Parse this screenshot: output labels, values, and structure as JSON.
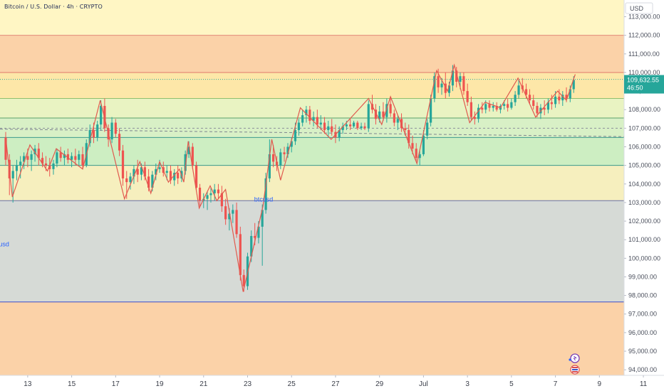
{
  "header": {
    "title": "Bitcoin / U.S. Dollar · 4h · CRYPTO"
  },
  "price_axis": {
    "currency_label": "USD",
    "current_price": "109,632.55",
    "countdown": "46:50"
  },
  "colors": {
    "bull": "#26a69a",
    "bear": "#ef5350",
    "zigzag": "#e05a4f",
    "zone_orange": "#fbd2a8",
    "zone_yellow": "#fff6c4",
    "zone_green": "#cdeec2",
    "zone_gray": "#d6dad6",
    "level_line": "#2962ff",
    "current_label_bg": "#26a69a"
  },
  "chart_data": {
    "type": "candlestick",
    "title": "Bitcoin / U.S. Dollar · 4h · CRYPTO",
    "ylim": [
      93700,
      113900
    ],
    "x_ticks": [
      "13",
      "15",
      "17",
      "19",
      "21",
      "23",
      "25",
      "27",
      "29",
      "Jul",
      "3",
      "5",
      "7",
      "9",
      "11"
    ],
    "y_ticks": [
      94000,
      95000,
      96000,
      97000,
      98000,
      99000,
      100000,
      101000,
      102000,
      103000,
      104000,
      105000,
      106000,
      107000,
      108000,
      109000,
      110000,
      111000,
      112000,
      113000
    ],
    "y_tick_labels": [
      "94,000.00",
      "95,000.00",
      "96,000.00",
      "97,000.00",
      "98,000.00",
      "99,000.00",
      "100,000.00",
      "101,000.00",
      "102,000.00",
      "103,000.00",
      "104,000.00",
      "105,000.00",
      "106,000.00",
      "107,000.00",
      "108,000.00",
      "109,000.00",
      "110,000.00",
      "111,000.00",
      "112,000.00",
      "113,000.00"
    ],
    "zones": [
      {
        "from": 112000,
        "to": 113900,
        "color": "#fff6c4"
      },
      {
        "from": 110000,
        "to": 112000,
        "color": "#fbd2a8"
      },
      {
        "from": 108600,
        "to": 110000,
        "color": "#fde7a8"
      },
      {
        "from": 107550,
        "to": 108600,
        "color": "#e9f3c2"
      },
      {
        "from": 106500,
        "to": 107550,
        "color": "#d8f0c6"
      },
      {
        "from": 105000,
        "to": 106500,
        "color": "#cdeec2"
      },
      {
        "from": 103100,
        "to": 105000,
        "color": "#f6efbe"
      },
      {
        "from": 97650,
        "to": 103100,
        "color": "#d6dad6"
      },
      {
        "from": 93700,
        "to": 97650,
        "color": "#fbd2a8"
      }
    ],
    "levels": [
      {
        "price": 112000,
        "color": "#e28a7a"
      },
      {
        "price": 110000,
        "color": "#e07a6a"
      },
      {
        "price": 108600,
        "color": "#8fbf6e"
      },
      {
        "price": 107550,
        "color": "#5aa06a"
      },
      {
        "price": 106500,
        "color": "#3c9a8c"
      },
      {
        "price": 105000,
        "color": "#3c9a8c"
      },
      {
        "price": 103100,
        "color": "#6a6fa8"
      },
      {
        "price": 97650,
        "color": "#3a4bc8"
      }
    ],
    "dashed_levels": [
      109630,
      107000
    ],
    "trend_line": {
      "x1": 0,
      "y1": 106950,
      "x2": 876,
      "y2": 106550
    },
    "annotations": [
      {
        "text": "btcusd",
        "time": 11.3,
        "price": 100650
      },
      {
        "text": "btcusd",
        "time": 23.3,
        "price": 103050
      }
    ],
    "candles": [
      [
        12.0,
        106500,
        106800,
        105000,
        105300
      ],
      [
        12.17,
        105300,
        105600,
        103400,
        104300
      ],
      [
        12.33,
        104300,
        105000,
        103000,
        104700
      ],
      [
        12.5,
        104700,
        105300,
        104200,
        105000
      ],
      [
        12.67,
        105000,
        105500,
        104300,
        105200
      ],
      [
        12.83,
        105200,
        105700,
        104800,
        105500
      ],
      [
        13.0,
        105500,
        105900,
        104900,
        105300
      ],
      [
        13.17,
        105300,
        105800,
        104700,
        105600
      ],
      [
        13.33,
        105600,
        106100,
        105200,
        105900
      ],
      [
        13.5,
        105900,
        106200,
        105000,
        105400
      ],
      [
        13.67,
        105400,
        105700,
        104900,
        105100
      ],
      [
        13.83,
        105100,
        105500,
        104700,
        105000
      ],
      [
        14.0,
        105000,
        105400,
        104400,
        104800
      ],
      [
        14.17,
        104800,
        105300,
        104500,
        105100
      ],
      [
        14.33,
        105100,
        105900,
        104900,
        105700
      ],
      [
        14.5,
        105700,
        106000,
        105200,
        105400
      ],
      [
        14.67,
        105400,
        105800,
        105000,
        105600
      ],
      [
        14.83,
        105600,
        105900,
        105100,
        105300
      ],
      [
        15.0,
        105300,
        105700,
        104900,
        105500
      ],
      [
        15.17,
        105500,
        105900,
        105000,
        105300
      ],
      [
        15.33,
        105300,
        105800,
        105000,
        105600
      ],
      [
        15.5,
        105600,
        106000,
        104800,
        105000
      ],
      [
        15.67,
        105000,
        106400,
        104900,
        106200
      ],
      [
        15.83,
        106200,
        107200,
        106000,
        106900
      ],
      [
        16.0,
        106900,
        107300,
        106200,
        106500
      ],
      [
        16.17,
        106500,
        107400,
        106300,
        107200
      ],
      [
        16.33,
        107200,
        108500,
        106900,
        108200
      ],
      [
        16.5,
        108200,
        108600,
        106800,
        107000
      ],
      [
        16.67,
        107000,
        107200,
        106000,
        106400
      ],
      [
        16.83,
        106400,
        107600,
        106200,
        107300
      ],
      [
        17.0,
        107300,
        107500,
        106500,
        106700
      ],
      [
        17.17,
        106700,
        107000,
        105500,
        105800
      ],
      [
        17.33,
        105800,
        106100,
        103900,
        104300
      ],
      [
        17.5,
        104300,
        104700,
        103200,
        104100
      ],
      [
        17.67,
        104100,
        104600,
        103700,
        104400
      ],
      [
        17.83,
        104400,
        105000,
        104000,
        104800
      ],
      [
        18.0,
        104800,
        105300,
        104100,
        104500
      ],
      [
        18.17,
        104500,
        105100,
        104200,
        104900
      ],
      [
        18.33,
        104900,
        105200,
        104200,
        104400
      ],
      [
        18.5,
        104400,
        104800,
        103600,
        103800
      ],
      [
        18.67,
        103800,
        104700,
        103600,
        104500
      ],
      [
        18.83,
        104500,
        105100,
        104200,
        104800
      ],
      [
        19.0,
        104800,
        105300,
        104600,
        104900
      ],
      [
        19.17,
        104900,
        105200,
        104400,
        104600
      ],
      [
        19.33,
        104600,
        105000,
        104200,
        104700
      ],
      [
        19.5,
        104700,
        105000,
        104000,
        104200
      ],
      [
        19.67,
        104200,
        104800,
        103900,
        104600
      ],
      [
        19.83,
        104600,
        105000,
        104000,
        104300
      ],
      [
        20.0,
        104300,
        104900,
        104100,
        104700
      ],
      [
        20.17,
        104700,
        105800,
        104500,
        105600
      ],
      [
        20.33,
        105600,
        106300,
        105400,
        106000
      ],
      [
        20.5,
        106000,
        106200,
        104800,
        105000
      ],
      [
        20.67,
        105000,
        105200,
        103600,
        103800
      ],
      [
        20.83,
        103800,
        104000,
        102800,
        103100
      ],
      [
        21.0,
        103100,
        103500,
        102700,
        103200
      ],
      [
        21.17,
        103200,
        103600,
        102600,
        103400
      ],
      [
        21.33,
        103400,
        103800,
        103000,
        103500
      ],
      [
        21.5,
        103500,
        104000,
        103100,
        103700
      ],
      [
        21.67,
        103700,
        104000,
        103200,
        103500
      ],
      [
        21.83,
        103500,
        103900,
        102500,
        102800
      ],
      [
        22.0,
        102800,
        103200,
        101800,
        102100
      ],
      [
        22.17,
        102100,
        102700,
        101500,
        102400
      ],
      [
        22.33,
        102400,
        102900,
        101900,
        102600
      ],
      [
        22.5,
        102600,
        103000,
        101100,
        101300
      ],
      [
        22.67,
        101300,
        101700,
        98800,
        99100
      ],
      [
        22.83,
        99100,
        99400,
        98200,
        98500
      ],
      [
        23.0,
        98500,
        100300,
        98300,
        100100
      ],
      [
        23.17,
        100100,
        101500,
        99800,
        101200
      ],
      [
        23.33,
        101200,
        101900,
        100700,
        101100
      ],
      [
        23.5,
        101100,
        102000,
        100800,
        101700
      ],
      [
        23.67,
        101700,
        102900,
        99600,
        102600
      ],
      [
        23.83,
        102600,
        104600,
        102400,
        104300
      ],
      [
        24.0,
        104300,
        106400,
        104100,
        105600
      ],
      [
        24.17,
        105600,
        106100,
        104900,
        105200
      ],
      [
        24.33,
        105200,
        105500,
        104700,
        105000
      ],
      [
        24.5,
        105000,
        105900,
        104800,
        105700
      ],
      [
        24.67,
        105700,
        106000,
        105200,
        105600
      ],
      [
        24.83,
        105600,
        106200,
        105400,
        106000
      ],
      [
        25.0,
        106000,
        106500,
        105700,
        106300
      ],
      [
        25.17,
        106300,
        107300,
        106100,
        106900
      ],
      [
        25.33,
        106900,
        107500,
        106600,
        107300
      ],
      [
        25.5,
        107300,
        108000,
        107100,
        107700
      ],
      [
        25.67,
        107700,
        108200,
        107300,
        108000
      ],
      [
        25.83,
        108000,
        108200,
        107200,
        107400
      ],
      [
        26.0,
        107400,
        107900,
        107100,
        107600
      ],
      [
        26.17,
        107600,
        108000,
        107000,
        107200
      ],
      [
        26.33,
        107200,
        107700,
        106900,
        107300
      ],
      [
        26.5,
        107300,
        107600,
        106700,
        106900
      ],
      [
        26.67,
        106900,
        107400,
        106500,
        107100
      ],
      [
        26.83,
        107100,
        107500,
        106600,
        106800
      ],
      [
        27.0,
        106800,
        107200,
        106200,
        106500
      ],
      [
        27.17,
        106500,
        107100,
        106300,
        106900
      ],
      [
        27.33,
        106900,
        107300,
        106700,
        107100
      ],
      [
        27.5,
        107100,
        107400,
        106900,
        107200
      ],
      [
        27.67,
        107200,
        107500,
        106900,
        107100
      ],
      [
        27.83,
        107100,
        107400,
        107000,
        107300
      ],
      [
        28.0,
        107300,
        107400,
        106900,
        107000
      ],
      [
        28.17,
        107000,
        107300,
        106900,
        107100
      ],
      [
        28.33,
        107100,
        107300,
        106900,
        107000
      ],
      [
        28.5,
        107000,
        108500,
        106800,
        108300
      ],
      [
        28.67,
        108300,
        108800,
        107800,
        108000
      ],
      [
        28.83,
        108000,
        108300,
        107200,
        107500
      ],
      [
        29.0,
        107500,
        108200,
        107300,
        107900
      ],
      [
        29.17,
        107900,
        108400,
        107400,
        107600
      ],
      [
        29.33,
        107600,
        108600,
        107300,
        108300
      ],
      [
        29.5,
        108300,
        108700,
        107600,
        107800
      ],
      [
        29.67,
        107800,
        108000,
        107100,
        107300
      ],
      [
        29.83,
        107300,
        107700,
        106900,
        107500
      ],
      [
        30.0,
        107500,
        107800,
        106800,
        107000
      ],
      [
        30.17,
        107000,
        107300,
        106600,
        106900
      ],
      [
        30.33,
        106900,
        107200,
        105900,
        106200
      ],
      [
        30.5,
        106200,
        106600,
        105600,
        105900
      ],
      [
        30.67,
        105900,
        106200,
        105200,
        105400
      ],
      [
        30.83,
        105400,
        105800,
        105000,
        105600
      ],
      [
        31.0,
        105600,
        106900,
        105500,
        106600
      ],
      [
        31.17,
        106600,
        107500,
        106400,
        107300
      ],
      [
        31.33,
        107300,
        108800,
        107100,
        108600
      ],
      [
        31.5,
        108600,
        110000,
        108400,
        109800
      ],
      [
        31.67,
        109800,
        110200,
        108900,
        109200
      ],
      [
        31.83,
        109200,
        109700,
        108800,
        109400
      ],
      [
        32.0,
        109400,
        110000,
        108600,
        108900
      ],
      [
        32.17,
        108900,
        109500,
        108700,
        109300
      ],
      [
        32.33,
        109300,
        110400,
        109000,
        110100
      ],
      [
        32.5,
        110100,
        110300,
        109200,
        109500
      ],
      [
        32.67,
        109500,
        110000,
        109100,
        109800
      ],
      [
        32.83,
        109800,
        110000,
        108800,
        109000
      ],
      [
        33.0,
        109000,
        109400,
        108200,
        108400
      ],
      [
        33.17,
        108400,
        108700,
        107400,
        107600
      ],
      [
        33.33,
        107600,
        107900,
        107200,
        107500
      ],
      [
        33.5,
        107500,
        108300,
        107300,
        108100
      ],
      [
        33.67,
        108100,
        108400,
        107800,
        108000
      ],
      [
        33.83,
        108000,
        108500,
        107800,
        108300
      ],
      [
        34.0,
        108300,
        108500,
        107900,
        108100
      ],
      [
        34.17,
        108100,
        108400,
        107900,
        108200
      ],
      [
        34.33,
        108200,
        108400,
        107900,
        108000
      ],
      [
        34.5,
        108000,
        108300,
        107800,
        108200
      ],
      [
        34.67,
        108200,
        108500,
        108000,
        108300
      ],
      [
        34.83,
        108300,
        108600,
        107900,
        108100
      ],
      [
        35.0,
        108100,
        108600,
        108000,
        108400
      ],
      [
        35.17,
        108400,
        109000,
        108200,
        108800
      ],
      [
        35.33,
        108800,
        109600,
        108600,
        109300
      ],
      [
        35.5,
        109300,
        109700,
        108900,
        109100
      ],
      [
        35.67,
        109100,
        109400,
        108600,
        108800
      ],
      [
        35.83,
        108800,
        109100,
        108300,
        108500
      ],
      [
        36.0,
        108500,
        108800,
        108000,
        108200
      ],
      [
        36.17,
        108200,
        108400,
        107600,
        107800
      ],
      [
        36.33,
        107800,
        108300,
        107500,
        108100
      ],
      [
        36.5,
        108100,
        108500,
        107700,
        108000
      ],
      [
        36.67,
        108000,
        108600,
        107800,
        108400
      ],
      [
        36.83,
        108400,
        108800,
        108000,
        108300
      ],
      [
        37.0,
        108300,
        109000,
        108100,
        108700
      ],
      [
        37.17,
        108700,
        109100,
        108300,
        108500
      ],
      [
        37.33,
        108500,
        109000,
        108200,
        108800
      ],
      [
        37.5,
        108800,
        109200,
        108400,
        108600
      ],
      [
        37.67,
        108600,
        109300,
        108400,
        109100
      ],
      [
        37.83,
        109100,
        109800,
        108900,
        109600
      ]
    ],
    "zigzag": [
      [
        12.0,
        106500
      ],
      [
        12.3,
        103300
      ],
      [
        13.1,
        106100
      ],
      [
        13.9,
        104700
      ],
      [
        14.3,
        105900
      ],
      [
        15.5,
        104800
      ],
      [
        16.3,
        108500
      ],
      [
        17.4,
        103200
      ],
      [
        18.1,
        105200
      ],
      [
        18.6,
        103500
      ],
      [
        19.0,
        105200
      ],
      [
        19.4,
        104100
      ],
      [
        19.9,
        104800
      ],
      [
        20.1,
        104100
      ],
      [
        20.3,
        106300
      ],
      [
        20.8,
        102700
      ],
      [
        21.3,
        103900
      ],
      [
        21.6,
        103100
      ],
      [
        22.0,
        103700
      ],
      [
        22.8,
        98200
      ],
      [
        23.7,
        102800
      ],
      [
        24.1,
        106400
      ],
      [
        24.5,
        104200
      ],
      [
        25.4,
        108100
      ],
      [
        26.8,
        106400
      ],
      [
        28.5,
        108600
      ],
      [
        29.1,
        107200
      ],
      [
        29.5,
        108700
      ],
      [
        30.0,
        107200
      ],
      [
        30.7,
        105100
      ],
      [
        31.6,
        110100
      ],
      [
        32.1,
        109000
      ],
      [
        32.4,
        110400
      ],
      [
        33.1,
        107300
      ],
      [
        33.8,
        108400
      ],
      [
        34.5,
        108100
      ],
      [
        35.3,
        109700
      ],
      [
        36.1,
        107600
      ],
      [
        37.1,
        109000
      ],
      [
        37.5,
        108500
      ],
      [
        37.9,
        109900
      ]
    ]
  }
}
